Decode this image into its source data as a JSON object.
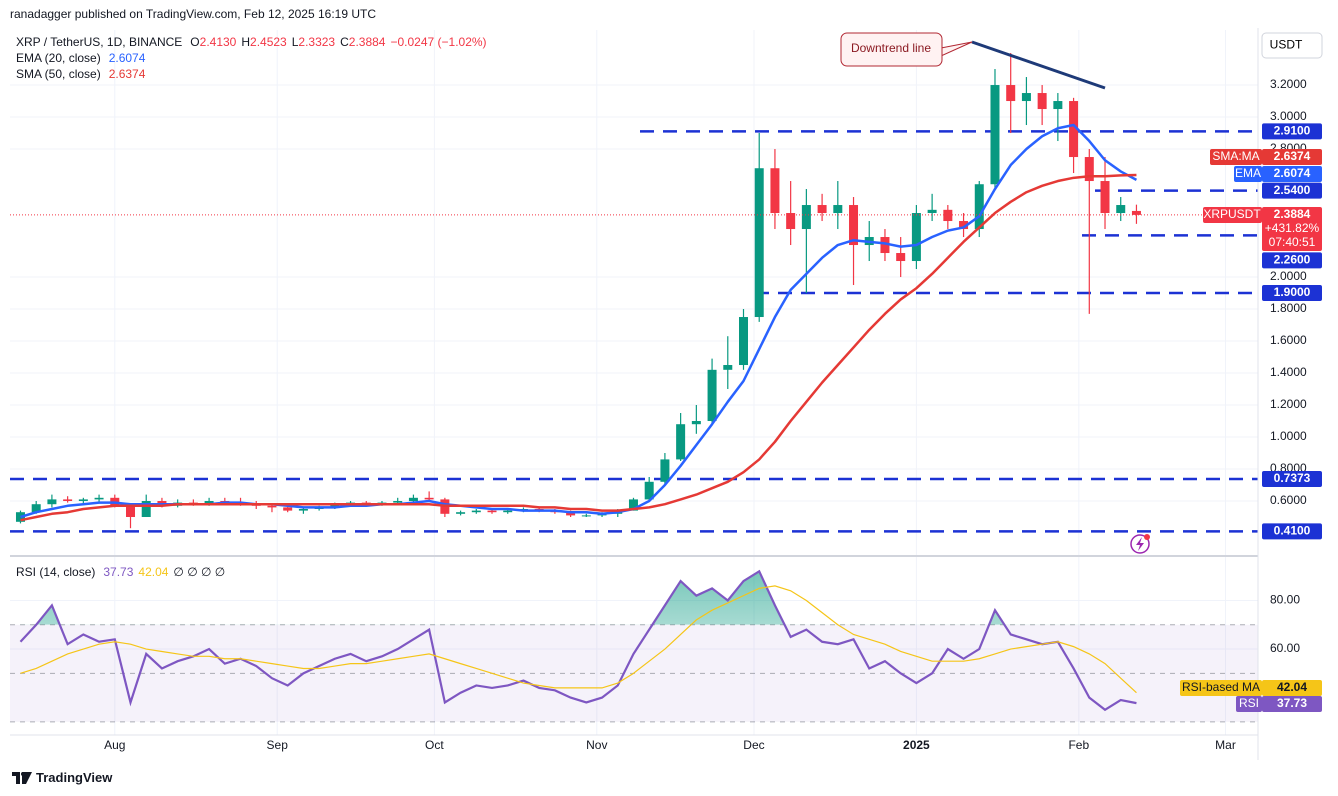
{
  "header": "ranadagger published on TradingView.com, Feb 12, 2025 16:19 UTC",
  "footer": "TradingView",
  "chart_data": [
    {
      "type": "candlestick",
      "title": "XRP / TetherUS, 1D, BINANCE",
      "legend_ohlc": [
        {
          "key": "O",
          "value": "2.4130"
        },
        {
          "key": "H",
          "value": "2.4523"
        },
        {
          "key": "L",
          "value": "2.3323"
        },
        {
          "key": "C",
          "value": "2.3884"
        }
      ],
      "change": "−0.0247 (−1.02%)",
      "currency": "USDT",
      "annotation": "Downtrend line",
      "up_color": "#089981",
      "down_color": "#f23645",
      "x": [
        2,
        5,
        8,
        11,
        14,
        17,
        20,
        23,
        26,
        29,
        32,
        35,
        38,
        41,
        44,
        47,
        50,
        53,
        56,
        59,
        62,
        65,
        68,
        71,
        74,
        77,
        80,
        83,
        86,
        89,
        92,
        95,
        98,
        101,
        104,
        107,
        110,
        113,
        116,
        119,
        122,
        125,
        128,
        131,
        134,
        137,
        140,
        143,
        146,
        149,
        152,
        155,
        158,
        161,
        164,
        167,
        170,
        173,
        176,
        179,
        182,
        185,
        188,
        191,
        194,
        197,
        200,
        203,
        206,
        209,
        212,
        215
      ],
      "open": [
        0.47,
        0.53,
        0.58,
        0.61,
        0.6,
        0.61,
        0.62,
        0.57,
        0.5,
        0.6,
        0.57,
        0.59,
        0.58,
        0.6,
        0.59,
        0.58,
        0.57,
        0.56,
        0.54,
        0.55,
        0.56,
        0.58,
        0.59,
        0.58,
        0.59,
        0.6,
        0.62,
        0.61,
        0.52,
        0.53,
        0.54,
        0.53,
        0.54,
        0.55,
        0.54,
        0.53,
        0.51,
        0.51,
        0.52,
        0.54,
        0.61,
        0.72,
        0.86,
        1.08,
        1.1,
        1.42,
        1.45,
        1.75,
        2.68,
        2.4,
        2.3,
        2.45,
        2.4,
        2.45,
        2.2,
        2.25,
        2.15,
        2.1,
        2.4,
        2.42,
        2.35,
        2.3,
        2.58,
        3.2,
        3.1,
        3.15,
        3.05,
        3.1,
        2.75,
        2.6,
        2.4,
        2.413
      ],
      "high": [
        0.54,
        0.6,
        0.64,
        0.63,
        0.62,
        0.64,
        0.64,
        0.58,
        0.64,
        0.62,
        0.61,
        0.61,
        0.62,
        0.62,
        0.62,
        0.6,
        0.58,
        0.57,
        0.56,
        0.57,
        0.59,
        0.6,
        0.6,
        0.6,
        0.62,
        0.64,
        0.66,
        0.62,
        0.54,
        0.55,
        0.55,
        0.55,
        0.56,
        0.56,
        0.55,
        0.54,
        0.52,
        0.53,
        0.55,
        0.62,
        0.75,
        0.9,
        1.15,
        1.2,
        1.49,
        1.63,
        1.8,
        2.9,
        2.8,
        2.6,
        2.55,
        2.52,
        2.6,
        2.5,
        2.35,
        2.3,
        2.25,
        2.45,
        2.52,
        2.45,
        2.4,
        2.6,
        3.3,
        3.4,
        3.25,
        3.2,
        3.15,
        3.12,
        2.8,
        2.75,
        2.5,
        2.4523
      ],
      "low": [
        0.46,
        0.52,
        0.56,
        0.59,
        0.58,
        0.59,
        0.56,
        0.43,
        0.5,
        0.56,
        0.56,
        0.57,
        0.57,
        0.58,
        0.57,
        0.55,
        0.53,
        0.53,
        0.52,
        0.54,
        0.55,
        0.57,
        0.57,
        0.57,
        0.58,
        0.59,
        0.6,
        0.5,
        0.51,
        0.52,
        0.52,
        0.52,
        0.53,
        0.53,
        0.52,
        0.5,
        0.5,
        0.5,
        0.5,
        0.54,
        0.6,
        0.7,
        0.85,
        1.02,
        1.08,
        1.3,
        1.42,
        1.72,
        2.3,
        2.2,
        1.9,
        2.35,
        2.3,
        1.95,
        2.1,
        2.1,
        2.0,
        2.05,
        2.35,
        2.3,
        2.25,
        2.25,
        2.55,
        2.9,
        2.95,
        2.95,
        2.85,
        2.65,
        1.77,
        2.3,
        2.35,
        2.3323
      ],
      "close": [
        0.53,
        0.58,
        0.61,
        0.6,
        0.61,
        0.62,
        0.57,
        0.5,
        0.6,
        0.57,
        0.59,
        0.58,
        0.6,
        0.59,
        0.58,
        0.57,
        0.56,
        0.54,
        0.55,
        0.56,
        0.58,
        0.59,
        0.58,
        0.59,
        0.6,
        0.62,
        0.61,
        0.52,
        0.53,
        0.54,
        0.53,
        0.54,
        0.55,
        0.54,
        0.53,
        0.51,
        0.51,
        0.52,
        0.54,
        0.61,
        0.72,
        0.86,
        1.08,
        1.1,
        1.42,
        1.45,
        1.75,
        2.68,
        2.4,
        2.3,
        2.45,
        2.4,
        2.45,
        2.2,
        2.25,
        2.15,
        2.1,
        2.4,
        2.42,
        2.35,
        2.3,
        2.58,
        3.2,
        3.1,
        3.15,
        3.05,
        3.1,
        2.75,
        2.6,
        2.4,
        2.45,
        2.3884
      ],
      "overlays": [
        {
          "name": "EMA (20, close)",
          "tag": "EMA",
          "color": "#2962ff",
          "values": [
            0.5,
            0.53,
            0.55,
            0.57,
            0.58,
            0.59,
            0.59,
            0.58,
            0.58,
            0.58,
            0.58,
            0.58,
            0.58,
            0.59,
            0.59,
            0.58,
            0.58,
            0.57,
            0.56,
            0.56,
            0.56,
            0.57,
            0.57,
            0.58,
            0.58,
            0.59,
            0.6,
            0.58,
            0.57,
            0.56,
            0.55,
            0.55,
            0.54,
            0.54,
            0.54,
            0.53,
            0.53,
            0.52,
            0.53,
            0.55,
            0.6,
            0.7,
            0.82,
            0.95,
            1.08,
            1.22,
            1.35,
            1.55,
            1.75,
            1.92,
            2.02,
            2.12,
            2.2,
            2.23,
            2.22,
            2.21,
            2.19,
            2.2,
            2.25,
            2.29,
            2.31,
            2.38,
            2.55,
            2.7,
            2.8,
            2.88,
            2.93,
            2.95,
            2.85,
            2.73,
            2.66,
            2.6074
          ]
        },
        {
          "name": "SMA (50, close)",
          "tag": "SMA:MA",
          "color": "#e53935",
          "values": [
            0.48,
            0.5,
            0.52,
            0.53,
            0.55,
            0.56,
            0.57,
            0.57,
            0.57,
            0.57,
            0.58,
            0.58,
            0.58,
            0.58,
            0.58,
            0.58,
            0.58,
            0.58,
            0.58,
            0.58,
            0.58,
            0.58,
            0.58,
            0.58,
            0.58,
            0.58,
            0.58,
            0.57,
            0.57,
            0.57,
            0.57,
            0.57,
            0.57,
            0.56,
            0.56,
            0.55,
            0.55,
            0.54,
            0.54,
            0.55,
            0.56,
            0.58,
            0.61,
            0.64,
            0.68,
            0.72,
            0.78,
            0.86,
            0.97,
            1.1,
            1.22,
            1.34,
            1.45,
            1.56,
            1.67,
            1.77,
            1.86,
            1.93,
            2.02,
            2.12,
            2.22,
            2.31,
            2.4,
            2.47,
            2.53,
            2.57,
            2.6,
            2.62,
            2.63,
            2.63,
            2.635,
            2.6374
          ]
        }
      ],
      "symbol_tag": {
        "name": "XRPUSDT",
        "change": "+431.82%",
        "countdown": "07:40:51"
      },
      "levels": [
        {
          "value": 2.91,
          "label": "2.9100"
        },
        {
          "value": 2.54,
          "label": "2.5400"
        },
        {
          "value": 2.26,
          "label": "2.2600"
        },
        {
          "value": 1.9,
          "label": "1.9000"
        },
        {
          "value": 0.7373,
          "label": "0.7373"
        },
        {
          "value": 0.41,
          "label": "0.4100"
        }
      ],
      "level_color": "#1c32d4",
      "xlim": [
        0,
        238.2
      ],
      "ylim": [
        0.2625,
        3.544
      ],
      "yticks": [
        {
          "value": 0.6,
          "label": "0.6000"
        },
        {
          "value": 0.8,
          "label": "0.8000"
        },
        {
          "value": 1.0,
          "label": "1.0000"
        },
        {
          "value": 1.2,
          "label": "1.2000"
        },
        {
          "value": 1.4,
          "label": "1.4000"
        },
        {
          "value": 1.6,
          "label": "1.6000"
        },
        {
          "value": 1.8,
          "label": "1.8000"
        },
        {
          "value": 2.0,
          "label": "2.0000"
        },
        {
          "value": 2.8,
          "label": "2.8000"
        },
        {
          "value": 3.0,
          "label": "3.0000"
        },
        {
          "value": 3.2,
          "label": "3.2000"
        }
      ],
      "grid": true
    },
    {
      "type": "line",
      "title": "RSI (14, close)",
      "legend_extra": "∅ ∅ ∅ ∅",
      "x": [
        2,
        5,
        8,
        11,
        14,
        17,
        20,
        23,
        26,
        29,
        32,
        35,
        38,
        41,
        44,
        47,
        50,
        53,
        56,
        59,
        62,
        65,
        68,
        71,
        74,
        77,
        80,
        83,
        86,
        89,
        92,
        95,
        98,
        101,
        104,
        107,
        110,
        113,
        116,
        119,
        122,
        125,
        128,
        131,
        134,
        137,
        140,
        143,
        146,
        149,
        152,
        155,
        158,
        161,
        164,
        167,
        170,
        173,
        176,
        179,
        182,
        185,
        188,
        191,
        194,
        197,
        200,
        203,
        206,
        209,
        212,
        215
      ],
      "series": [
        {
          "name": "RSI",
          "color": "#7e57c2",
          "values": [
            63,
            70,
            78,
            62,
            66,
            63,
            64,
            38,
            58,
            52,
            55,
            57,
            60,
            54,
            56,
            53,
            48,
            45,
            50,
            53,
            56,
            58,
            55,
            57,
            60,
            64,
            68,
            38,
            42,
            45,
            44,
            45,
            47,
            44,
            43,
            40,
            38,
            40,
            45,
            58,
            68,
            78,
            88,
            82,
            85,
            80,
            88,
            92,
            78,
            65,
            68,
            63,
            62,
            64,
            52,
            55,
            50,
            46,
            50,
            60,
            56,
            60,
            76,
            66,
            64,
            62,
            63,
            52,
            40,
            35,
            39,
            37.73
          ]
        },
        {
          "name": "RSI-based MA",
          "color": "#f5c518",
          "values": [
            50,
            52,
            55,
            58,
            60,
            62,
            63,
            62,
            60,
            59,
            58,
            57,
            57,
            56,
            56,
            55,
            54,
            53,
            52,
            52,
            53,
            54,
            54,
            55,
            56,
            57,
            58,
            56,
            54,
            52,
            50,
            48,
            46,
            45,
            44,
            44,
            44,
            44,
            46,
            50,
            55,
            60,
            66,
            72,
            76,
            79,
            82,
            85,
            86,
            84,
            80,
            75,
            70,
            66,
            64,
            62,
            59,
            57,
            55,
            55,
            55,
            56,
            58,
            60,
            61,
            62,
            63,
            61,
            58,
            54,
            48,
            42.04
          ]
        }
      ],
      "band": [
        30,
        70
      ],
      "midline": 50,
      "overbought_color": "#089981",
      "xlim": [
        0,
        238.2
      ],
      "ylim": [
        24.6,
        97.5
      ],
      "xticks": [
        {
          "value": 20,
          "label": "Aug"
        },
        {
          "value": 51,
          "label": "Sep"
        },
        {
          "value": 81,
          "label": "Oct"
        },
        {
          "value": 112,
          "label": "Nov"
        },
        {
          "value": 142,
          "label": "Dec"
        },
        {
          "value": 173,
          "label": "2025"
        },
        {
          "value": 204,
          "label": "Feb"
        },
        {
          "value": 232,
          "label": "Mar"
        }
      ],
      "yticks": [
        {
          "value": 60,
          "label": "60.00"
        },
        {
          "value": 80,
          "label": "80.00"
        }
      ],
      "grid": true
    }
  ]
}
